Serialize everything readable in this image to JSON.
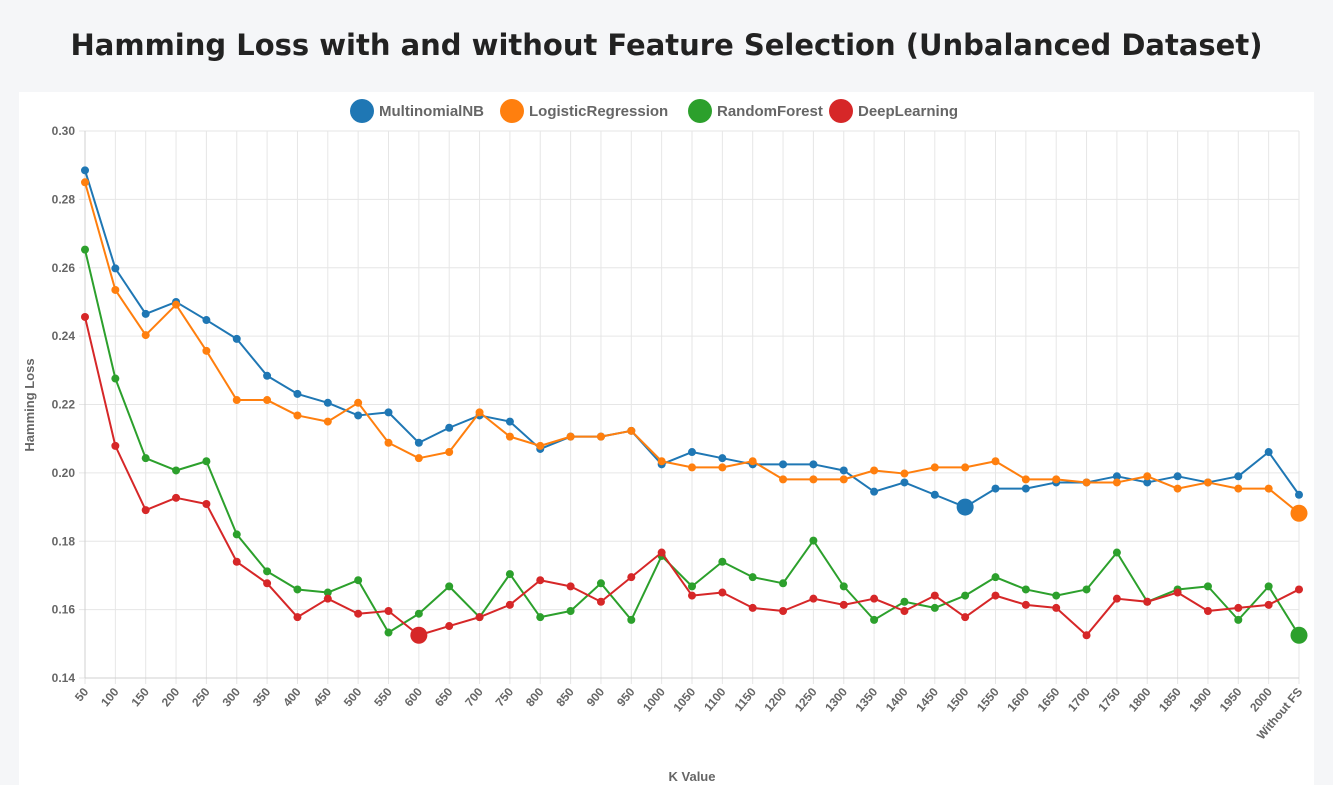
{
  "page": {
    "title": "Hamming Loss with and without Feature Selection (Unbalanced Dataset)"
  },
  "chart_data": {
    "type": "line",
    "title": "Hamming Loss with and without Feature Selection (Unbalanced Dataset)",
    "xlabel": "K Value",
    "ylabel": "Hamming Loss",
    "ylim": [
      0.14,
      0.3
    ],
    "yticks": [
      "0.14",
      "0.16",
      "0.18",
      "0.20",
      "0.22",
      "0.24",
      "0.26",
      "0.28",
      "0.30"
    ],
    "grid": true,
    "legend_position": "top-center",
    "categories": [
      "50",
      "100",
      "150",
      "200",
      "250",
      "300",
      "350",
      "400",
      "450",
      "500",
      "550",
      "600",
      "650",
      "700",
      "750",
      "800",
      "850",
      "900",
      "950",
      "1000",
      "1050",
      "1100",
      "1150",
      "1200",
      "1250",
      "1300",
      "1350",
      "1400",
      "1450",
      "1500",
      "1550",
      "1600",
      "1650",
      "1700",
      "1750",
      "1800",
      "1850",
      "1900",
      "1950",
      "2000",
      "Without FS"
    ],
    "series": [
      {
        "name": "MultinomialNB",
        "color": "#1f77b4",
        "highlight_index": 29,
        "values": [
          0.2885,
          0.2598,
          0.2465,
          0.25,
          0.2447,
          0.2392,
          0.2284,
          0.2231,
          0.2205,
          0.2168,
          0.2177,
          0.2088,
          0.2132,
          0.2168,
          0.215,
          0.207,
          0.2106,
          0.2106,
          0.2123,
          0.2025,
          0.2061,
          0.2043,
          0.2025,
          0.2025,
          0.2025,
          0.2007,
          0.1945,
          0.1972,
          0.1936,
          0.19,
          0.1954,
          0.1954,
          0.1972,
          0.1972,
          0.199,
          0.1972,
          0.199,
          0.1972,
          0.199,
          0.2061,
          0.1936
        ]
      },
      {
        "name": "LogisticRegression",
        "color": "#ff7f0e",
        "highlight_index": 40,
        "values": [
          0.285,
          0.2535,
          0.2403,
          0.2492,
          0.2357,
          0.2213,
          0.2213,
          0.2168,
          0.215,
          0.2205,
          0.2088,
          0.2043,
          0.2061,
          0.2177,
          0.2106,
          0.2079,
          0.2106,
          0.2106,
          0.2123,
          0.2034,
          0.2016,
          0.2016,
          0.2034,
          0.1981,
          0.1981,
          0.1981,
          0.2007,
          0.1998,
          0.2016,
          0.2016,
          0.2034,
          0.1981,
          0.1981,
          0.1972,
          0.1972,
          0.199,
          0.1954,
          0.1972,
          0.1954,
          0.1954,
          0.1882
        ]
      },
      {
        "name": "RandomForest",
        "color": "#2ca02c",
        "highlight_index": 40,
        "values": [
          0.2653,
          0.2276,
          0.2043,
          0.2007,
          0.2034,
          0.182,
          0.1712,
          0.1659,
          0.165,
          0.1686,
          0.1533,
          0.1588,
          0.1668,
          0.1578,
          0.1704,
          0.1578,
          0.1596,
          0.1677,
          0.157,
          0.1757,
          0.1668,
          0.174,
          0.1695,
          0.1677,
          0.1802,
          0.1668,
          0.157,
          0.1623,
          0.1605,
          0.1641,
          0.1695,
          0.1659,
          0.1641,
          0.1659,
          0.1767,
          0.1623,
          0.1659,
          0.1668,
          0.157,
          0.1668,
          0.1525
        ]
      },
      {
        "name": "DeepLearning",
        "color": "#d62728",
        "highlight_index": 11,
        "values": [
          0.2456,
          0.2079,
          0.1891,
          0.1927,
          0.1909,
          0.174,
          0.1677,
          0.1578,
          0.1632,
          0.1588,
          0.1596,
          0.1525,
          0.1552,
          0.1578,
          0.1614,
          0.1686,
          0.1668,
          0.1623,
          0.1695,
          0.1767,
          0.1641,
          0.165,
          0.1605,
          0.1596,
          0.1632,
          0.1614,
          0.1632,
          0.1596,
          0.1641,
          0.1578,
          0.1641,
          0.1614,
          0.1605,
          0.1525,
          0.1632,
          0.1623,
          0.165,
          0.1596,
          0.1605,
          0.1614,
          0.1659
        ]
      }
    ]
  }
}
